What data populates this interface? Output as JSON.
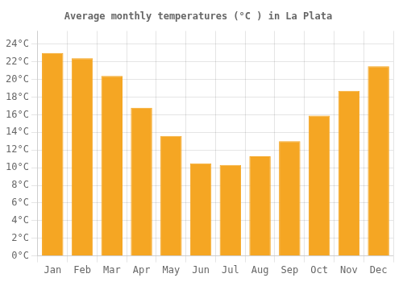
{
  "chart_data": {
    "type": "bar",
    "title": "Average monthly temperatures (°C ) in La Plata",
    "categories": [
      "Jan",
      "Feb",
      "Mar",
      "Apr",
      "May",
      "Jun",
      "Jul",
      "Aug",
      "Sep",
      "Oct",
      "Nov",
      "Dec"
    ],
    "values": [
      23.0,
      22.4,
      20.4,
      16.8,
      13.6,
      10.5,
      10.3,
      11.3,
      13.0,
      15.9,
      18.7,
      21.5
    ],
    "color": "#F5A623",
    "ylim": [
      0,
      25.5
    ],
    "yticks": [
      {
        "value": 0,
        "label": "0°C"
      },
      {
        "value": 2,
        "label": "2°C"
      },
      {
        "value": 4,
        "label": "4°C"
      },
      {
        "value": 6,
        "label": "6°C"
      },
      {
        "value": 8,
        "label": "8°C"
      },
      {
        "value": 10,
        "label": "10°C"
      },
      {
        "value": 12,
        "label": "12°C"
      },
      {
        "value": 14,
        "label": "14°C"
      },
      {
        "value": 16,
        "label": "16°C"
      },
      {
        "value": 18,
        "label": "18°C"
      },
      {
        "value": 20,
        "label": "20°C"
      },
      {
        "value": 22,
        "label": "22°C"
      },
      {
        "value": 24,
        "label": "24°C"
      }
    ],
    "grid": true
  }
}
